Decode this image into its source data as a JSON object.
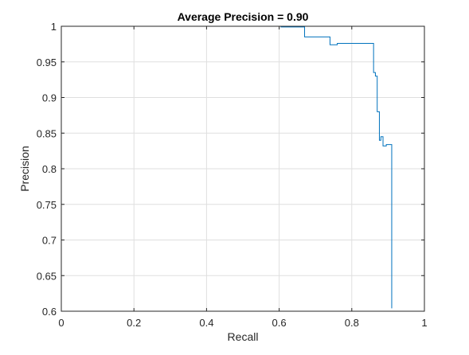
{
  "chart_data": {
    "type": "line",
    "title": "Average Precision = 0.90",
    "xlabel": "Recall",
    "ylabel": "Precision",
    "xlim": [
      0,
      1
    ],
    "ylim": [
      0.6,
      1
    ],
    "xticks": [
      0,
      0.2,
      0.4,
      0.6,
      0.8,
      1
    ],
    "xtick_labels": [
      "0",
      "0.2",
      "0.4",
      "0.6",
      "0.8",
      "1"
    ],
    "yticks": [
      0.6,
      0.65,
      0.7,
      0.75,
      0.8,
      0.85,
      0.9,
      0.95,
      1
    ],
    "ytick_labels": [
      "0.6",
      "0.65",
      "0.7",
      "0.75",
      "0.8",
      "0.85",
      "0.9",
      "0.95",
      "1"
    ],
    "grid": true,
    "line_color": "#0072BD",
    "series": [
      {
        "x": [
          0,
          0.605,
          0.605,
          0.67,
          0.67,
          0.74,
          0.74,
          0.76,
          0.76,
          0.86,
          0.86,
          0.865,
          0.865,
          0.87,
          0.87,
          0.876,
          0.876,
          0.88,
          0.88,
          0.886,
          0.886,
          0.895,
          0.895,
          0.91,
          0.91
        ],
        "y": [
          1,
          1,
          0.999,
          0.999,
          0.985,
          0.985,
          0.974,
          0.974,
          0.976,
          0.976,
          0.935,
          0.935,
          0.93,
          0.93,
          0.88,
          0.88,
          0.84,
          0.84,
          0.845,
          0.845,
          0.832,
          0.832,
          0.834,
          0.834,
          0.604
        ]
      }
    ]
  }
}
